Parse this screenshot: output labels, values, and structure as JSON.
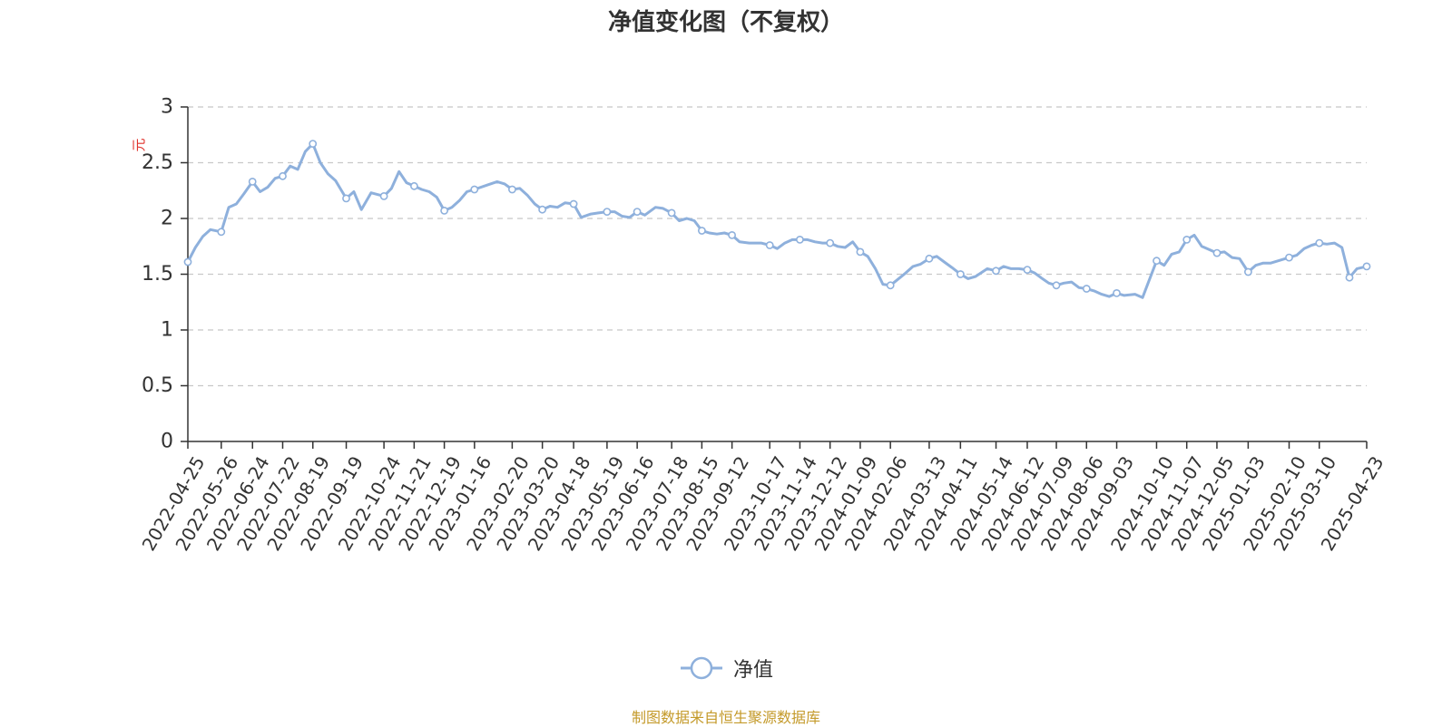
{
  "title": "净值变化图（不复权）",
  "source_note": "制图数据来自恒生聚源数据库",
  "legend": {
    "series_label": "净值"
  },
  "colors": {
    "line": "#8eb0dc",
    "axis": "#333333",
    "grid": "#c8c8c8",
    "unit": "#e0312b",
    "source": "#c49a2a"
  },
  "chart_data": {
    "type": "line",
    "title": "净值变化图（不复权）",
    "ylabel": "元",
    "xlabel": "",
    "ylim": [
      0,
      3
    ],
    "yticks": [
      "0",
      "0.5",
      "1",
      "1.5",
      "2",
      "2.5",
      "3"
    ],
    "grid": true,
    "legend_position": "bottom",
    "x_ticks": [
      "2022-04-25",
      "2022-05-26",
      "2022-06-24",
      "2022-07-22",
      "2022-08-19",
      "2022-09-19",
      "2022-10-24",
      "2022-11-21",
      "2022-12-19",
      "2023-01-16",
      "2023-02-20",
      "2023-03-20",
      "2023-04-18",
      "2023-05-19",
      "2023-06-16",
      "2023-07-18",
      "2023-08-15",
      "2023-09-12",
      "2023-10-17",
      "2023-11-14",
      "2023-12-12",
      "2024-01-09",
      "2024-02-06",
      "2024-03-13",
      "2024-04-11",
      "2024-05-14",
      "2024-06-12",
      "2024-07-09",
      "2024-08-06",
      "2024-09-03",
      "2024-10-10",
      "2024-11-07",
      "2024-12-05",
      "2025-01-03",
      "2025-02-10",
      "2025-03-10",
      "2025-04-23"
    ],
    "series": [
      {
        "name": "净值",
        "x": [
          "2022-04-25",
          "2022-05-02",
          "2022-05-09",
          "2022-05-16",
          "2022-05-26",
          "2022-06-02",
          "2022-06-09",
          "2022-06-16",
          "2022-06-24",
          "2022-07-01",
          "2022-07-08",
          "2022-07-15",
          "2022-07-22",
          "2022-07-29",
          "2022-08-05",
          "2022-08-12",
          "2022-08-19",
          "2022-08-26",
          "2022-09-02",
          "2022-09-09",
          "2022-09-19",
          "2022-09-26",
          "2022-10-03",
          "2022-10-12",
          "2022-10-24",
          "2022-10-31",
          "2022-11-07",
          "2022-11-14",
          "2022-11-21",
          "2022-11-28",
          "2022-12-05",
          "2022-12-12",
          "2022-12-19",
          "2022-12-26",
          "2023-01-02",
          "2023-01-09",
          "2023-01-16",
          "2023-01-28",
          "2023-02-06",
          "2023-02-13",
          "2023-02-20",
          "2023-02-27",
          "2023-03-06",
          "2023-03-13",
          "2023-03-20",
          "2023-03-27",
          "2023-04-03",
          "2023-04-10",
          "2023-04-18",
          "2023-04-25",
          "2023-05-04",
          "2023-05-11",
          "2023-05-19",
          "2023-05-26",
          "2023-06-02",
          "2023-06-09",
          "2023-06-16",
          "2023-06-23",
          "2023-07-03",
          "2023-07-10",
          "2023-07-18",
          "2023-07-25",
          "2023-08-01",
          "2023-08-08",
          "2023-08-15",
          "2023-08-22",
          "2023-08-29",
          "2023-09-05",
          "2023-09-12",
          "2023-09-19",
          "2023-09-28",
          "2023-10-09",
          "2023-10-17",
          "2023-10-24",
          "2023-10-31",
          "2023-11-07",
          "2023-11-14",
          "2023-11-21",
          "2023-11-28",
          "2023-12-05",
          "2023-12-12",
          "2023-12-19",
          "2023-12-26",
          "2024-01-02",
          "2024-01-09",
          "2024-01-16",
          "2024-01-23",
          "2024-01-30",
          "2024-02-06",
          "2024-02-20",
          "2024-02-27",
          "2024-03-05",
          "2024-03-13",
          "2024-03-20",
          "2024-03-27",
          "2024-04-03",
          "2024-04-11",
          "2024-04-18",
          "2024-04-25",
          "2024-05-06",
          "2024-05-14",
          "2024-05-21",
          "2024-05-28",
          "2024-06-04",
          "2024-06-12",
          "2024-06-19",
          "2024-06-26",
          "2024-07-02",
          "2024-07-09",
          "2024-07-16",
          "2024-07-23",
          "2024-07-30",
          "2024-08-06",
          "2024-08-13",
          "2024-08-20",
          "2024-08-27",
          "2024-09-03",
          "2024-09-10",
          "2024-09-20",
          "2024-09-27",
          "2024-10-10",
          "2024-10-17",
          "2024-10-24",
          "2024-10-31",
          "2024-11-07",
          "2024-11-14",
          "2024-11-21",
          "2024-11-28",
          "2024-12-05",
          "2024-12-12",
          "2024-12-19",
          "2024-12-26",
          "2025-01-03",
          "2025-01-10",
          "2025-01-17",
          "2025-01-24",
          "2025-02-10",
          "2025-02-17",
          "2025-02-24",
          "2025-03-03",
          "2025-03-10",
          "2025-03-17",
          "2025-03-24",
          "2025-03-31",
          "2025-04-07",
          "2025-04-14",
          "2025-04-23"
        ],
        "y": [
          1.61,
          1.74,
          1.84,
          1.9,
          1.88,
          2.1,
          2.13,
          2.22,
          2.33,
          2.24,
          2.28,
          2.36,
          2.38,
          2.47,
          2.44,
          2.6,
          2.67,
          2.5,
          2.4,
          2.34,
          2.18,
          2.24,
          2.08,
          2.23,
          2.2,
          2.27,
          2.42,
          2.32,
          2.29,
          2.26,
          2.24,
          2.19,
          2.07,
          2.1,
          2.16,
          2.24,
          2.26,
          2.3,
          2.33,
          2.31,
          2.26,
          2.27,
          2.21,
          2.13,
          2.08,
          2.11,
          2.1,
          2.14,
          2.13,
          2.01,
          2.04,
          2.05,
          2.06,
          2.06,
          2.02,
          2.01,
          2.06,
          2.03,
          2.1,
          2.09,
          2.05,
          1.98,
          2.0,
          1.98,
          1.89,
          1.87,
          1.86,
          1.87,
          1.85,
          1.79,
          1.78,
          1.78,
          1.76,
          1.73,
          1.78,
          1.81,
          1.81,
          1.81,
          1.79,
          1.78,
          1.78,
          1.75,
          1.74,
          1.79,
          1.7,
          1.66,
          1.55,
          1.41,
          1.4,
          1.51,
          1.57,
          1.59,
          1.64,
          1.66,
          1.61,
          1.56,
          1.5,
          1.46,
          1.48,
          1.55,
          1.53,
          1.57,
          1.55,
          1.55,
          1.54,
          1.51,
          1.46,
          1.42,
          1.4,
          1.42,
          1.43,
          1.38,
          1.37,
          1.35,
          1.32,
          1.3,
          1.33,
          1.31,
          1.32,
          1.29,
          1.62,
          1.58,
          1.68,
          1.7,
          1.81,
          1.85,
          1.75,
          1.72,
          1.69,
          1.7,
          1.65,
          1.64,
          1.52,
          1.58,
          1.6,
          1.6,
          1.65,
          1.67,
          1.73,
          1.76,
          1.78,
          1.77,
          1.78,
          1.74,
          1.47,
          1.55,
          1.57
        ]
      }
    ]
  }
}
